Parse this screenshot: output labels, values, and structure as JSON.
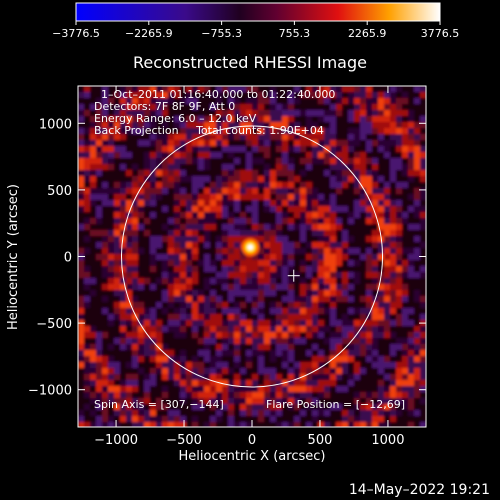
{
  "chart_data": {
    "type": "heatmap",
    "title": "Reconstructed RHESSI Image",
    "xlabel": "Heliocentric X (arcsec)",
    "ylabel": "Heliocentric Y (arcsec)",
    "xlim": [
      -1280,
      1280
    ],
    "ylim": [
      -1280,
      1280
    ],
    "x_ticks": [
      -1000,
      -500,
      0,
      500,
      1000
    ],
    "y_ticks": [
      -1000,
      -500,
      0,
      500,
      1000
    ],
    "x_tick_labels": [
      "−1000",
      "−500",
      "0",
      "500",
      "1000"
    ],
    "y_tick_labels": [
      "−1000",
      "−500",
      "0",
      "500",
      "1000"
    ],
    "colorbar": {
      "min": -3776.5,
      "max": 3776.5,
      "ticks": [
        "−3776.5",
        "−2265.9",
        "−755.3",
        "755.3",
        "2265.9",
        "3776.5"
      ],
      "colormap": [
        "#0000ff",
        "#2a0a6a",
        "#000000",
        "#a0105a",
        "#ff2000",
        "#ffd000",
        "#ffffff"
      ]
    },
    "info_lines": [
      "1–Oct–2011 01:16:40.000 to 01:22:40.000",
      "Detectors: 7F 8F 9F, Att 0",
      "Energy Range: 6.0 – 12.0 keV",
      "Back Projection     Total counts: 1.90E+04"
    ],
    "spin_axis": "Spin Axis = [307,−144]",
    "flare_position": "Flare Position = [−12,69]",
    "solar_limb_radius": 960,
    "spin_axis_marker": [
      307,
      -144
    ],
    "flare_source": [
      -12,
      69
    ],
    "footer_timestamp": "14–May–2022 19:21"
  }
}
